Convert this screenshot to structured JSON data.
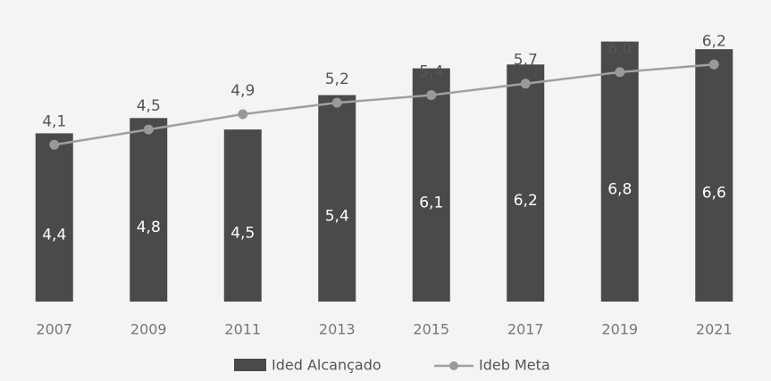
{
  "chart_data": {
    "type": "bar-line",
    "categories": [
      "2007",
      "2009",
      "2011",
      "2013",
      "2015",
      "2017",
      "2019",
      "2021"
    ],
    "series": [
      {
        "name": "Ided Alcançado",
        "color": "#4a4a4a",
        "values": [
          4.4,
          4.8,
          4.5,
          5.4,
          6.1,
          6.2,
          6.8,
          6.6
        ],
        "value_labels": [
          "4,4",
          "4,8",
          "4,5",
          "5,4",
          "6,1",
          "6,2",
          "6,8",
          "6,6"
        ]
      },
      {
        "name": "Ideb Meta",
        "color": "#a0a0a0",
        "values": [
          4.1,
          4.5,
          4.9,
          5.2,
          5.4,
          5.7,
          6.0,
          6.2
        ],
        "value_labels": [
          "4,1",
          "4,5",
          "4,9",
          "5,2",
          "5,4",
          "5,7",
          "6,0",
          "6,2"
        ]
      }
    ],
    "ylim": [
      0,
      7
    ],
    "legend": "bottom"
  }
}
